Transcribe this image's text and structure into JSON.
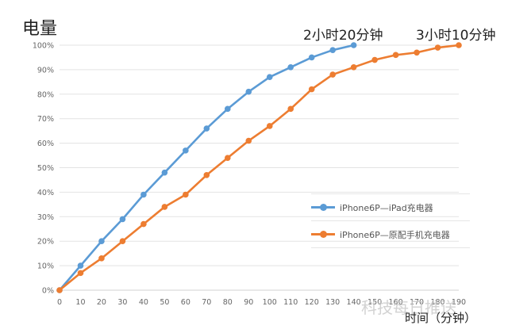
{
  "chart_data": {
    "type": "line",
    "title": "",
    "ylabel": "电量",
    "xlabel": "时间（分钟）",
    "x": [
      0,
      10,
      20,
      30,
      40,
      50,
      60,
      70,
      80,
      90,
      100,
      110,
      120,
      130,
      140,
      150,
      160,
      170,
      180,
      190
    ],
    "xlim": [
      0,
      190
    ],
    "ylim": [
      0,
      100
    ],
    "yticks": [
      "0%",
      "10%",
      "20%",
      "30%",
      "40%",
      "50%",
      "60%",
      "70%",
      "80%",
      "90%",
      "100%"
    ],
    "xticks": [
      "0",
      "10",
      "20",
      "30",
      "40",
      "50",
      "60",
      "70",
      "80",
      "90",
      "100",
      "110",
      "120",
      "130",
      "140",
      "150",
      "160",
      "170",
      "180",
      "190"
    ],
    "grid": true,
    "legend_position": "right-middle",
    "series": [
      {
        "name": "iPhone6P—iPad充电器",
        "color": "#5b9bd5",
        "x": [
          0,
          10,
          20,
          30,
          40,
          50,
          60,
          70,
          80,
          90,
          100,
          110,
          120,
          130,
          140
        ],
        "values": [
          0,
          10,
          20,
          29,
          39,
          48,
          57,
          66,
          74,
          81,
          87,
          91,
          95,
          98,
          100
        ]
      },
      {
        "name": "iPhone6P—原配手机充电器",
        "color": "#ed7d31",
        "x": [
          0,
          10,
          20,
          30,
          40,
          50,
          60,
          70,
          80,
          90,
          100,
          110,
          120,
          130,
          140,
          150,
          160,
          170,
          180,
          190
        ],
        "values": [
          0,
          7,
          13,
          20,
          27,
          34,
          39,
          47,
          54,
          61,
          67,
          74,
          82,
          88,
          91,
          94,
          96,
          97,
          99,
          100
        ]
      }
    ],
    "annotations": [
      {
        "text": "2小时20分钟",
        "x": 140,
        "y": 100
      },
      {
        "text": "3小时10分钟",
        "x": 190,
        "y": 100
      }
    ]
  },
  "labels": {
    "y_title": "电量",
    "x_title": "时间（分钟）",
    "annot_blue": "2小时20分钟",
    "annot_orange": "3小时10分钟",
    "legend_blue": "iPhone6P—iPad充电器",
    "legend_orange": "iPhone6P—原配手机充电器",
    "watermark": "科技每日推送"
  }
}
